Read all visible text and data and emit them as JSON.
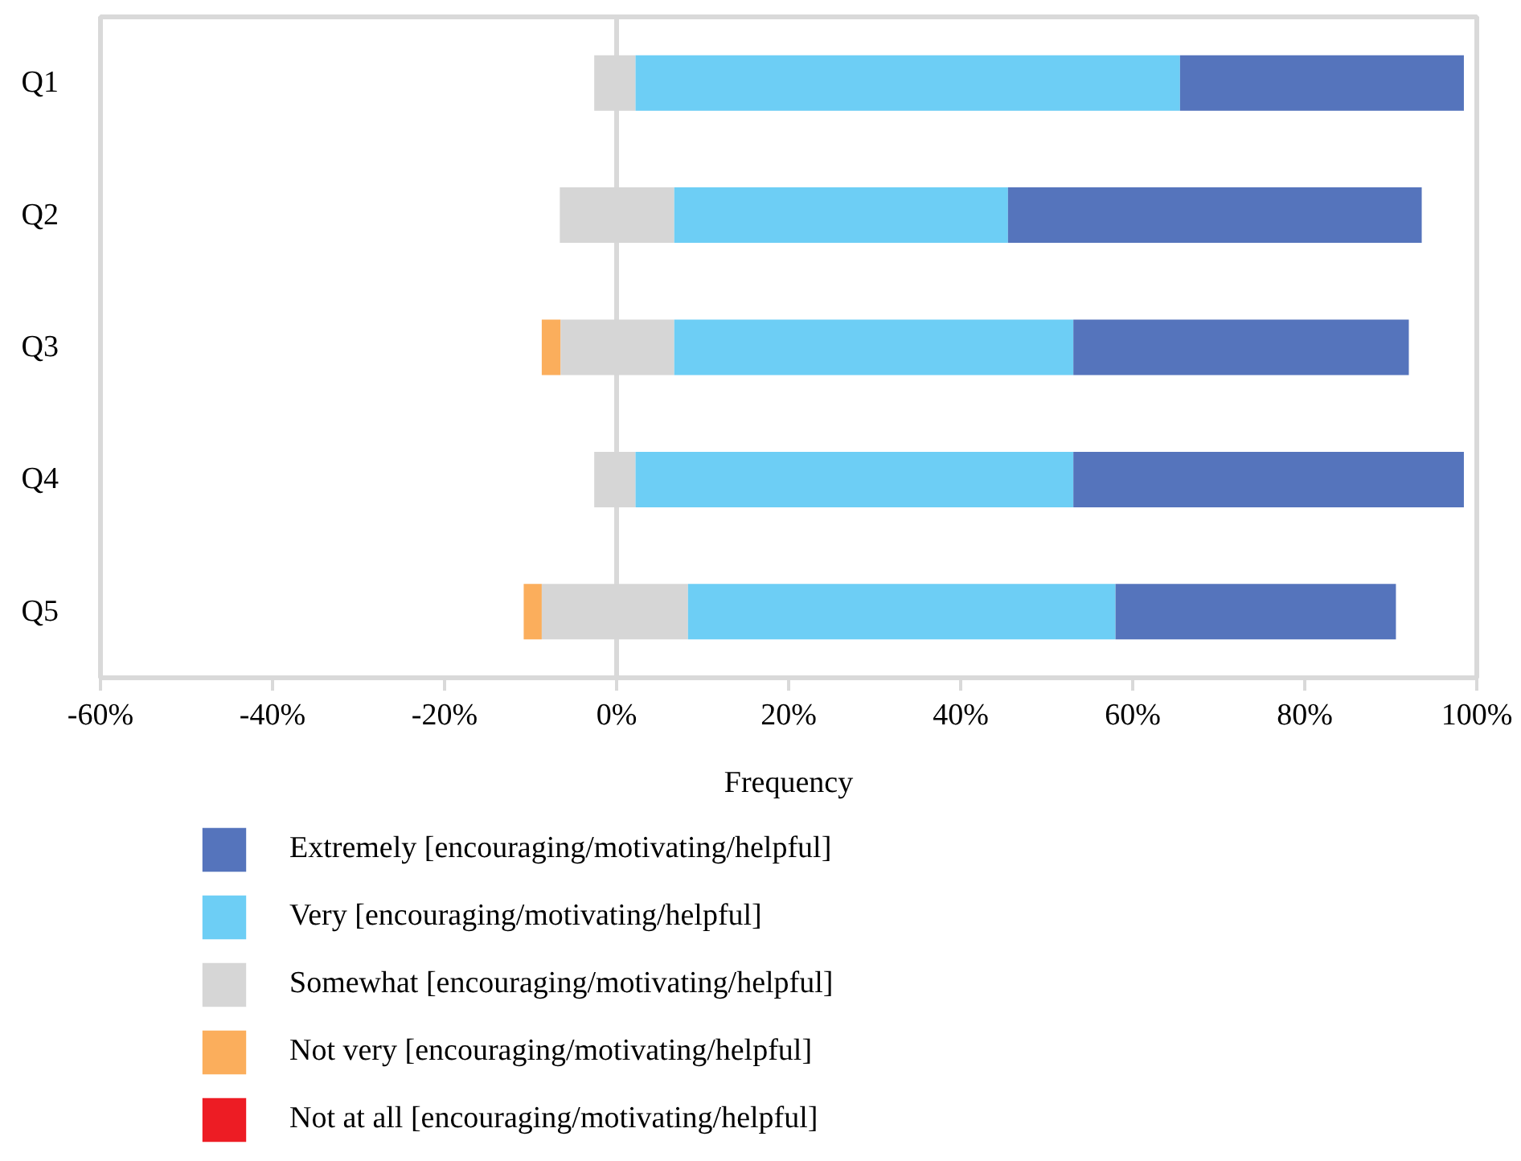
{
  "chart_data": {
    "type": "bar",
    "orientation": "horizontal",
    "xlabel": "Frequency",
    "categories": [
      "Q1",
      "Q2",
      "Q3",
      "Q4",
      "Q5"
    ],
    "series": [
      {
        "name": "Not at all [encouraging/motivating/helpful]",
        "color": "#ed1c24",
        "base": [
          null,
          null,
          null,
          null,
          null
        ],
        "values": [
          null,
          null,
          null,
          null,
          null
        ]
      },
      {
        "name": "Not very [encouraging/motivating/helpful]",
        "color": "#fbae5c",
        "base": [
          null,
          null,
          -8.7,
          null,
          -10.8
        ],
        "values": [
          null,
          null,
          2.2,
          null,
          2.1
        ]
      },
      {
        "name": "Somewhat [encouraging/motivating/helpful]",
        "color": "#d6d6d6",
        "base": [
          -2.6,
          -6.6,
          -6.5,
          -2.6,
          -8.7
        ],
        "values": [
          4.8,
          13.3,
          13.2,
          4.8,
          17.0
        ]
      },
      {
        "name": "Very [encouraging/motivating/helpful]",
        "color": "#6dcef5",
        "base": [
          2.2,
          6.7,
          6.7,
          2.2,
          8.3
        ],
        "values": [
          63.3,
          38.8,
          46.4,
          50.9,
          49.7
        ]
      },
      {
        "name": "Extremely [encouraging/motivating/helpful]",
        "color": "#5574bc",
        "base": [
          65.5,
          45.5,
          53.1,
          53.1,
          58.0
        ],
        "values": [
          33.0,
          48.1,
          39.0,
          45.4,
          32.6
        ]
      }
    ],
    "xlim": [
      -60,
      100
    ],
    "xticks": [
      {
        "value": -60,
        "label": "-60%"
      },
      {
        "value": -40,
        "label": "-40%"
      },
      {
        "value": -20,
        "label": "-20%"
      },
      {
        "value": 0,
        "label": "0%"
      },
      {
        "value": 20,
        "label": "20%"
      },
      {
        "value": 40,
        "label": "40%"
      },
      {
        "value": 60,
        "label": "60%"
      },
      {
        "value": 80,
        "label": "80%"
      },
      {
        "value": 100,
        "label": "100%"
      }
    ],
    "ref_lines": [
      {
        "axis": "x",
        "value": 0,
        "color": "#d9d9d9"
      }
    ],
    "grid": false,
    "legend": "bottom"
  }
}
